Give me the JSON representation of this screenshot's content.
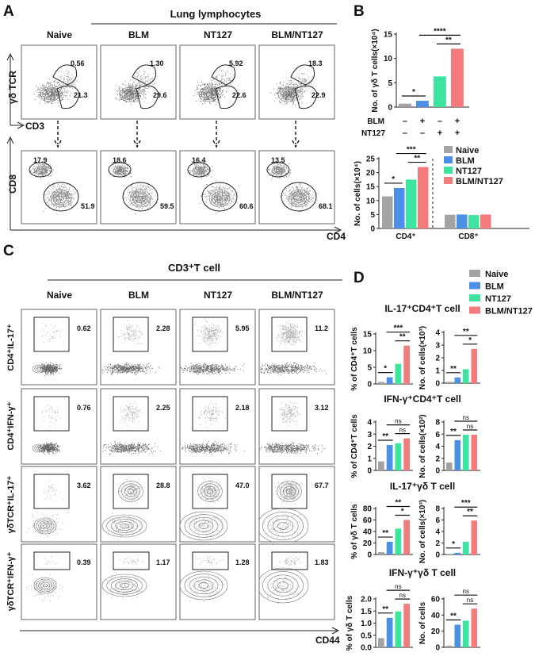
{
  "colors": {
    "Naive": "#a3a3a3",
    "BLM": "#4b8fe6",
    "NT127": "#3de39f",
    "BLM/NT127": "#f47b7b"
  },
  "panel_a": {
    "label": "A",
    "title": "Lung lymphocytes",
    "columns": [
      "Naive",
      "BLM",
      "NT127",
      "BLM/NT127"
    ],
    "top_y_axis": "γδ TCR",
    "top_x_axis": "CD3",
    "bottom_y_axis": "CD8",
    "bottom_x_axis": "CD4",
    "top_values": [
      {
        "upper": "0.56",
        "lower": "21.3"
      },
      {
        "upper": "1.30",
        "lower": "29.6"
      },
      {
        "upper": "5.92",
        "lower": "22.6"
      },
      {
        "upper": "18.3",
        "lower": "22.9"
      }
    ],
    "bottom_values": [
      {
        "upper": "17.9",
        "lower": "51.9"
      },
      {
        "upper": "18.6",
        "lower": "59.5"
      },
      {
        "upper": "16.4",
        "lower": "60.6"
      },
      {
        "upper": "13.5",
        "lower": "68.1"
      }
    ]
  },
  "panel_b": {
    "label": "B",
    "conditions": [
      {
        "name": "BLM",
        "marks": [
          "–",
          "+",
          "–",
          "+"
        ]
      },
      {
        "name": "NT127",
        "marks": [
          "–",
          "–",
          "+",
          "+"
        ]
      }
    ],
    "legend": [
      "Naive",
      "BLM",
      "NT127",
      "BLM/NT127"
    ]
  },
  "panel_c": {
    "label": "C",
    "title": "CD3⁺T cell",
    "columns": [
      "Naive",
      "BLM",
      "NT127",
      "BLM/NT127"
    ],
    "rows": [
      "CD4⁺IL-17⁺",
      "CD4⁺IFN-γ⁺",
      "γδTCR⁺IL-17⁺",
      "γδTCR⁺IFN-γ⁺"
    ],
    "x_axis": "CD44",
    "values": [
      [
        "0.62",
        "2.28",
        "5.95",
        "11.2"
      ],
      [
        "0.76",
        "2.25",
        "2.18",
        "3.12"
      ],
      [
        "3.62",
        "28.8",
        "47.0",
        "67.7"
      ],
      [
        "0.39",
        "1.17",
        "1.28",
        "1.83"
      ]
    ]
  },
  "panel_d": {
    "label": "D",
    "legend": [
      "Naive",
      "BLM",
      "NT127",
      "BLM/NT127"
    ],
    "titles": [
      "IL-17⁺CD4⁺T cell",
      "IFN-γ⁺CD4⁺T cell",
      "IL-17⁺γδ T cell",
      "IFN-γ⁺γδ T cell"
    ]
  },
  "chart_data": [
    {
      "id": "b1",
      "type": "bar",
      "categories": [
        "Naive",
        "BLM",
        "NT127",
        "BLM/NT127"
      ],
      "values": [
        0.7,
        1.3,
        6.3,
        12.0
      ],
      "ylabel": "No. of γδ T cells(×10⁴)",
      "ylim": [
        0,
        15
      ],
      "yticks": [
        "0",
        "5",
        "10",
        "15"
      ],
      "significance": [
        {
          "from": 0,
          "to": 1,
          "label": "*"
        },
        {
          "from": 1,
          "to": 3,
          "label": "****"
        },
        {
          "from": 2,
          "to": 3,
          "label": "**"
        }
      ]
    },
    {
      "id": "b2",
      "type": "bar",
      "categories": [
        "CD4⁺",
        "CD8⁺"
      ],
      "ylabel": "No. of cells(×10⁴)",
      "ylim": [
        0,
        25
      ],
      "yticks": [
        "0",
        "5",
        "10",
        "15",
        "20",
        "25"
      ],
      "series": [
        {
          "name": "Naive",
          "values": [
            11.5,
            4.9
          ]
        },
        {
          "name": "BLM",
          "values": [
            14.5,
            5.0
          ]
        },
        {
          "name": "NT127",
          "values": [
            17.5,
            4.8
          ]
        },
        {
          "name": "BLM/NT127",
          "values": [
            22.0,
            5.0
          ]
        }
      ],
      "significance": [
        {
          "group": 0,
          "from": 0,
          "to": 1,
          "label": "*"
        },
        {
          "group": 0,
          "from": 1,
          "to": 3,
          "label": "***"
        },
        {
          "group": 0,
          "from": 2,
          "to": 3,
          "label": "**"
        }
      ],
      "legend": "top-right"
    },
    {
      "id": "d1a",
      "type": "bar",
      "categories": [
        "Naive",
        "BLM",
        "NT127",
        "BLM/NT127"
      ],
      "values": [
        0.6,
        2.0,
        6.0,
        11.5
      ],
      "ylabel": "% of CD4⁺T cells",
      "ylim": [
        0,
        15
      ],
      "yticks": [
        "0",
        "5",
        "10",
        "15"
      ],
      "significance": [
        {
          "from": 0,
          "to": 1,
          "label": "*"
        },
        {
          "from": 1,
          "to": 3,
          "label": "***"
        },
        {
          "from": 2,
          "to": 3,
          "label": "**"
        }
      ]
    },
    {
      "id": "d1b",
      "type": "bar",
      "categories": [
        "Naive",
        "BLM",
        "NT127",
        "BLM/NT127"
      ],
      "values": [
        0.1,
        0.45,
        1.1,
        2.7
      ],
      "ylabel": "No. of cells(×10³)",
      "ylim": [
        0,
        4
      ],
      "yticks": [
        "0",
        "1",
        "2",
        "3",
        "4"
      ],
      "significance": [
        {
          "from": 0,
          "to": 1,
          "label": "**"
        },
        {
          "from": 1,
          "to": 3,
          "label": "**"
        },
        {
          "from": 2,
          "to": 3,
          "label": "*"
        }
      ]
    },
    {
      "id": "d2a",
      "type": "bar",
      "categories": [
        "Naive",
        "BLM",
        "NT127",
        "BLM/NT127"
      ],
      "values": [
        0.75,
        2.1,
        2.25,
        2.65
      ],
      "ylabel": "% of CD4⁺T cells",
      "ylim": [
        0,
        4
      ],
      "yticks": [
        "0",
        "1",
        "2",
        "3",
        "4"
      ],
      "significance": [
        {
          "from": 0,
          "to": 1,
          "label": "**"
        },
        {
          "from": 1,
          "to": 3,
          "label": "ns"
        },
        {
          "from": 2,
          "to": 3,
          "label": "ns"
        }
      ]
    },
    {
      "id": "d2b",
      "type": "bar",
      "categories": [
        "Naive",
        "BLM",
        "NT127",
        "BLM/NT127"
      ],
      "values": [
        1.3,
        5.0,
        5.9,
        5.9
      ],
      "ylabel": "No. of cells(×10²)",
      "ylim": [
        0,
        8
      ],
      "yticks": [
        "0",
        "2",
        "4",
        "6",
        "8"
      ],
      "significance": [
        {
          "from": 0,
          "to": 1,
          "label": "**"
        },
        {
          "from": 1,
          "to": 3,
          "label": "ns"
        },
        {
          "from": 2,
          "to": 3,
          "label": "ns"
        }
      ]
    },
    {
      "id": "d3a",
      "type": "bar",
      "categories": [
        "Naive",
        "BLM",
        "NT127",
        "BLM/NT127"
      ],
      "values": [
        4,
        22,
        45,
        60
      ],
      "ylabel": "% of γδ T cells",
      "ylim": [
        0,
        80
      ],
      "yticks": [
        "0",
        "20",
        "40",
        "60",
        "80"
      ],
      "significance": [
        {
          "from": 0,
          "to": 1,
          "label": "**"
        },
        {
          "from": 1,
          "to": 3,
          "label": "**"
        },
        {
          "from": 2,
          "to": 3,
          "label": "*"
        }
      ]
    },
    {
      "id": "d3b",
      "type": "bar",
      "categories": [
        "Naive",
        "BLM",
        "NT127",
        "BLM/NT127"
      ],
      "values": [
        0.05,
        0.3,
        2.2,
        5.9
      ],
      "ylabel": "No. of cells(×10³)",
      "ylim": [
        0,
        8
      ],
      "yticks": [
        "0",
        "2",
        "4",
        "6",
        "8"
      ],
      "significance": [
        {
          "from": 0,
          "to": 1,
          "label": "*"
        },
        {
          "from": 1,
          "to": 3,
          "label": "***"
        },
        {
          "from": 2,
          "to": 3,
          "label": "**"
        }
      ]
    },
    {
      "id": "d4a",
      "type": "bar",
      "categories": [
        "Naive",
        "BLM",
        "NT127",
        "BLM/NT127"
      ],
      "values": [
        0.38,
        1.22,
        1.48,
        1.8
      ],
      "ylabel": "% of γδ T cells",
      "ylim": [
        0,
        2
      ],
      "yticks": [
        "0.0",
        "0.5",
        "1.0",
        "1.5",
        "2.0"
      ],
      "significance": [
        {
          "from": 0,
          "to": 1,
          "label": "**"
        },
        {
          "from": 1,
          "to": 3,
          "label": "ns"
        },
        {
          "from": 2,
          "to": 3,
          "label": "ns"
        }
      ]
    },
    {
      "id": "d4b",
      "type": "bar",
      "categories": [
        "Naive",
        "BLM",
        "NT127",
        "BLM/NT127"
      ],
      "values": [
        2,
        28,
        33,
        48
      ],
      "ylabel": "No. of cells",
      "ylim": [
        0,
        60
      ],
      "yticks": [
        "0",
        "20",
        "40",
        "60"
      ],
      "significance": [
        {
          "from": 0,
          "to": 1,
          "label": "**"
        },
        {
          "from": 1,
          "to": 3,
          "label": "ns"
        },
        {
          "from": 2,
          "to": 3,
          "label": "ns"
        }
      ]
    }
  ]
}
